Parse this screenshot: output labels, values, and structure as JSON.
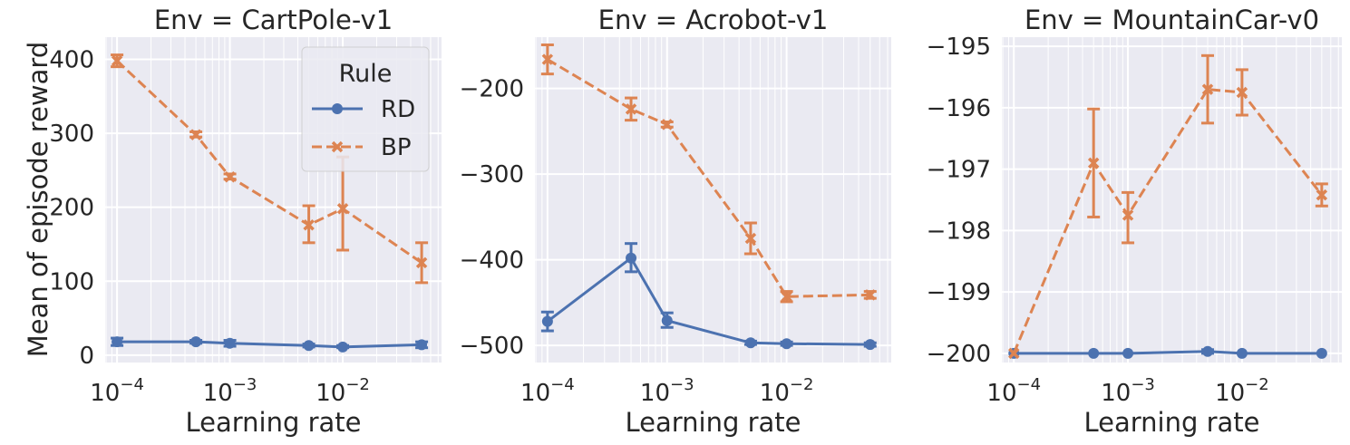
{
  "figure": {
    "ylabel": "Mean of episode reward",
    "xlabel": "Learning rate",
    "colors": {
      "plot_bg": "#eaeaf2",
      "grid": "#ffffff",
      "rd": "#4c72b0",
      "bp": "#dd8452",
      "text": "#262626"
    }
  },
  "legend": {
    "title": "Rule",
    "entries": [
      {
        "name": "RD",
        "marker": "circle",
        "linestyle": "solid"
      },
      {
        "name": "BP",
        "marker": "x",
        "linestyle": "dashed"
      }
    ]
  },
  "chart_data": [
    {
      "type": "line",
      "title": "Env = CartPole-v1",
      "xlabel": "Learning rate",
      "ylabel": "Mean of episode reward",
      "xscale": "log",
      "xlim": [
        7.85e-05,
        0.075
      ],
      "ylim": [
        -10,
        430
      ],
      "xticks": [
        0.0001,
        0.001,
        0.01
      ],
      "xtick_labels": [
        {
          "base": "10",
          "exp": "−4"
        },
        {
          "base": "10",
          "exp": "−3"
        },
        {
          "base": "10",
          "exp": "−2"
        }
      ],
      "yticks": [
        0,
        100,
        200,
        300,
        400
      ],
      "ytick_labels": [
        "0",
        "100",
        "200",
        "300",
        "400"
      ],
      "legend": "upper right",
      "x": [
        0.0001,
        0.0005,
        0.001,
        0.005,
        0.01,
        0.05
      ],
      "series": [
        {
          "name": "RD",
          "y": [
            18,
            18,
            16,
            13,
            11,
            14
          ],
          "err_low": [
            13,
            16,
            12,
            11,
            10,
            10
          ],
          "err_high": [
            23,
            20,
            20,
            15,
            13,
            18
          ]
        },
        {
          "name": "BP",
          "y": [
            398,
            298,
            241,
            176,
            198,
            125
          ],
          "err_low": [
            390,
            295,
            238,
            152,
            142,
            98
          ],
          "err_high": [
            406,
            302,
            245,
            202,
            268,
            152
          ]
        }
      ]
    },
    {
      "type": "line",
      "title": "Env = Acrobot-v1",
      "xlabel": "Learning rate",
      "xscale": "log",
      "xlim": [
        7.85e-05,
        0.075
      ],
      "ylim": [
        -520,
        -140
      ],
      "xticks": [
        0.0001,
        0.001,
        0.01
      ],
      "xtick_labels": [
        {
          "base": "10",
          "exp": "−4"
        },
        {
          "base": "10",
          "exp": "−3"
        },
        {
          "base": "10",
          "exp": "−2"
        }
      ],
      "yticks": [
        -500,
        -400,
        -300,
        -200
      ],
      "ytick_labels": [
        "−500",
        "−400",
        "−300",
        "−200"
      ],
      "x": [
        0.0001,
        0.0005,
        0.001,
        0.005,
        0.01,
        0.05
      ],
      "series": [
        {
          "name": "RD",
          "y": [
            -472,
            -398,
            -471,
            -497,
            -498,
            -499
          ],
          "err_low": [
            -483,
            -414,
            -479,
            -499,
            -500,
            -501
          ],
          "err_high": [
            -461,
            -381,
            -462,
            -495,
            -496,
            -497
          ]
        },
        {
          "name": "BP",
          "y": [
            -166,
            -224,
            -242,
            -375,
            -443,
            -441
          ],
          "err_low": [
            -183,
            -237,
            -245,
            -393,
            -449,
            -445
          ],
          "err_high": [
            -149,
            -211,
            -239,
            -357,
            -437,
            -437
          ]
        }
      ]
    },
    {
      "type": "line",
      "title": "Env = MountainCar-v0",
      "xlabel": "Learning rate",
      "xscale": "log",
      "xlim": [
        7.85e-05,
        0.075
      ],
      "ylim": [
        -200.15,
        -194.85
      ],
      "xticks": [
        0.0001,
        0.001,
        0.01
      ],
      "xtick_labels": [
        {
          "base": "10",
          "exp": "−4"
        },
        {
          "base": "10",
          "exp": "−3"
        },
        {
          "base": "10",
          "exp": "−2"
        }
      ],
      "yticks": [
        -200,
        -199,
        -198,
        -197,
        -196,
        -195
      ],
      "ytick_labels": [
        "−200",
        "−199",
        "−198",
        "−197",
        "−196",
        "−195"
      ],
      "x": [
        0.0001,
        0.0005,
        0.001,
        0.005,
        0.01,
        0.05
      ],
      "series": [
        {
          "name": "RD",
          "y": [
            -200.0,
            -200.0,
            -200.0,
            -199.97,
            -200.0,
            -200.0
          ],
          "err_low": [
            -200.0,
            -200.0,
            -200.0,
            -200.0,
            -200.0,
            -200.0
          ],
          "err_high": [
            -200.0,
            -200.0,
            -200.0,
            -199.94,
            -200.0,
            -200.0
          ]
        },
        {
          "name": "BP",
          "y": [
            -200.0,
            -196.9,
            -197.75,
            -195.7,
            -195.75,
            -197.42
          ],
          "err_low": [
            -200.0,
            -197.78,
            -198.2,
            -196.25,
            -196.12,
            -197.6
          ],
          "err_high": [
            -200.0,
            -196.02,
            -197.38,
            -195.15,
            -195.38,
            -197.24
          ]
        }
      ]
    }
  ]
}
